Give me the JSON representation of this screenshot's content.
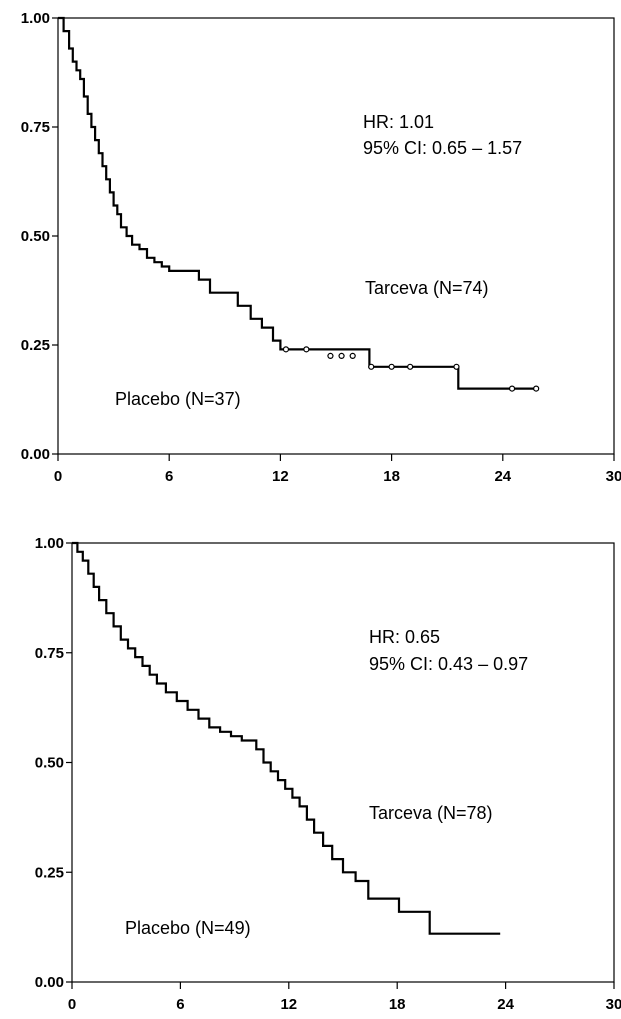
{
  "chart_data": [
    {
      "type": "line",
      "xlim": [
        0,
        30
      ],
      "ylim": [
        0,
        1
      ],
      "x_ticks": [
        "0",
        "6",
        "12",
        "18",
        "24",
        "30"
      ],
      "y_ticks": [
        "0.00",
        "0.25",
        "0.50",
        "0.75",
        "1.00"
      ],
      "annotations": {
        "hr": "HR: 1.01",
        "ci": "95% CI: 0.65 – 1.57",
        "tarceva": "Tarceva (N=74)",
        "placebo": "Placebo (N=37)"
      },
      "series": [
        {
          "x": [
            0,
            0.3,
            0.6,
            0.8,
            1.0,
            1.2,
            1.4,
            1.6,
            1.8,
            2.0,
            2.2,
            2.4,
            2.6,
            2.8,
            3.0,
            3.2,
            3.4,
            3.7,
            4.0,
            4.4,
            4.8,
            5.2,
            5.6,
            6.0,
            7.6,
            8.2,
            9.7,
            10.4,
            11.0,
            11.6,
            12.0,
            16.8,
            21.6,
            25.8
          ],
          "y": [
            1.0,
            0.97,
            0.93,
            0.9,
            0.88,
            0.86,
            0.82,
            0.78,
            0.75,
            0.72,
            0.69,
            0.66,
            0.63,
            0.6,
            0.57,
            0.55,
            0.52,
            0.5,
            0.48,
            0.47,
            0.45,
            0.44,
            0.43,
            0.42,
            0.4,
            0.37,
            0.34,
            0.31,
            0.29,
            0.26,
            0.24,
            0.2,
            0.15,
            0.15
          ],
          "censored": [
            [
              12.3,
              0.24
            ],
            [
              13.4,
              0.24
            ],
            [
              14.7,
              0.225
            ],
            [
              15.3,
              0.225
            ],
            [
              15.9,
              0.225
            ],
            [
              16.9,
              0.2
            ],
            [
              18.0,
              0.2
            ],
            [
              19.0,
              0.2
            ],
            [
              21.5,
              0.2
            ],
            [
              24.5,
              0.15
            ],
            [
              25.8,
              0.15
            ]
          ]
        }
      ]
    },
    {
      "type": "line",
      "xlim": [
        0,
        30
      ],
      "ylim": [
        0,
        1
      ],
      "x_ticks": [
        "0",
        "6",
        "12",
        "18",
        "24",
        "30"
      ],
      "y_ticks": [
        "0.00",
        "0.25",
        "0.50",
        "0.75",
        "1.00"
      ],
      "annotations": {
        "hr": "HR: 0.65",
        "ci": "95% CI: 0.43 – 0.97",
        "tarceva": "Tarceva (N=78)",
        "placebo": "Placebo (N=49)"
      },
      "series": [
        {
          "x": [
            0,
            0.3,
            0.6,
            0.9,
            1.2,
            1.5,
            1.9,
            2.3,
            2.7,
            3.1,
            3.5,
            3.9,
            4.3,
            4.7,
            5.2,
            5.8,
            6.4,
            7.0,
            7.6,
            8.2,
            8.8,
            9.4,
            10.2,
            10.6,
            11.0,
            11.4,
            11.8,
            12.2,
            12.6,
            13.0,
            13.4,
            13.9,
            14.4,
            15.0,
            15.7,
            16.4,
            18.1,
            19.8,
            23.7
          ],
          "y": [
            1.0,
            0.98,
            0.96,
            0.93,
            0.9,
            0.87,
            0.84,
            0.81,
            0.78,
            0.76,
            0.74,
            0.72,
            0.7,
            0.68,
            0.66,
            0.64,
            0.62,
            0.6,
            0.58,
            0.57,
            0.56,
            0.55,
            0.53,
            0.5,
            0.48,
            0.46,
            0.44,
            0.42,
            0.4,
            0.37,
            0.34,
            0.31,
            0.28,
            0.25,
            0.23,
            0.19,
            0.16,
            0.11,
            0.11
          ]
        }
      ]
    }
  ]
}
